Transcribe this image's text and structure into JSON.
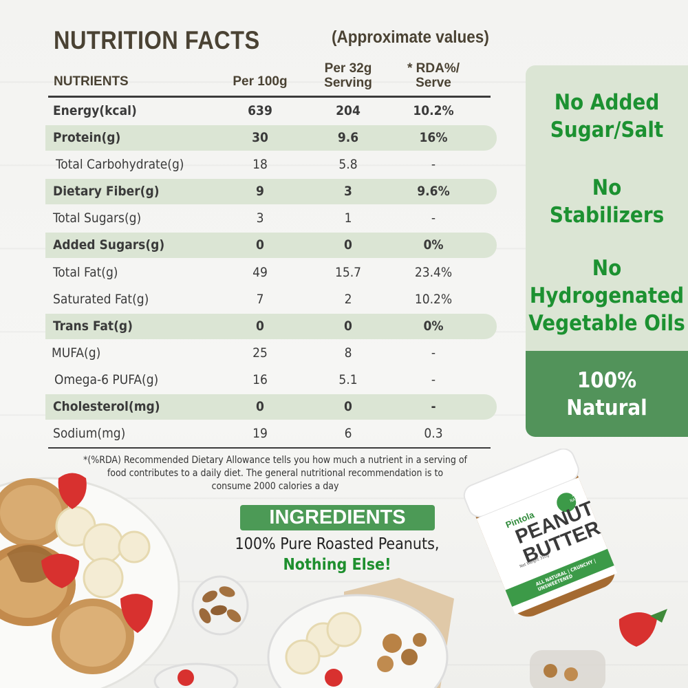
{
  "header": {
    "title": "NUTRITION FACTS",
    "approx": "(Approximate values)",
    "col_nutrients": "NUTRIENTS",
    "col_per100": "Per 100g",
    "col_per32_l1": "Per 32g",
    "col_per32_l2": "Serving",
    "col_rda_l1": "* RDA%/",
    "col_rda_l2": "Serve"
  },
  "rows": [
    {
      "name": "Energy(kcal)",
      "per100": "639",
      "per32": "204",
      "rda": "10.2%"
    },
    {
      "name": "Protein(g)",
      "per100": "30",
      "per32": "9.6",
      "rda": "16%"
    },
    {
      "name": "Total Carbohydrate(g)",
      "per100": "18",
      "per32": "5.8",
      "rda": "-"
    },
    {
      "name": "Dietary Fiber(g)",
      "per100": "9",
      "per32": "3",
      "rda": "9.6%"
    },
    {
      "name": "Total Sugars(g)",
      "per100": "3",
      "per32": "1",
      "rda": "-"
    },
    {
      "name": "Added Sugars(g)",
      "per100": "0",
      "per32": "0",
      "rda": "0%"
    },
    {
      "name": "Total Fat(g)",
      "per100": "49",
      "per32": "15.7",
      "rda": "23.4%"
    },
    {
      "name": "Saturated Fat(g)",
      "per100": "7",
      "per32": "2",
      "rda": "10.2%"
    },
    {
      "name": "Trans Fat(g)",
      "per100": "0",
      "per32": "0",
      "rda": "0%"
    },
    {
      "name": "MUFA(g)",
      "per100": "25",
      "per32": "8",
      "rda": "-"
    },
    {
      "name": "Omega-6 PUFA(g)",
      "per100": "16",
      "per32": "5.1",
      "rda": "-"
    },
    {
      "name": "Cholesterol(mg)",
      "per100": "0",
      "per32": "0",
      "rda": "-"
    },
    {
      "name": "Sodium(mg)",
      "per100": "19",
      "per32": "6",
      "rda": "0.3"
    }
  ],
  "footnote": {
    "l1": "*(%RDA) Recommended Dietary Allowance tells you how much a nutrient in a serving of",
    "l2": "food contributes to a daily diet. The general nutritional recommendation is to",
    "l3": "consume 2000 calories a day"
  },
  "ingredients": {
    "label": "INGREDIENTS",
    "line1": "100% Pure Roasted Peanuts,",
    "line2": "Nothing Else!"
  },
  "claims": {
    "c1_l1": "No Added",
    "c1_l2": "Sugar/Salt",
    "c2_l1": "No",
    "c2_l2": "Stabilizers",
    "c3_l1": "No",
    "c3_l2": "Hydrogenated",
    "c3_l3": "Vegetable Oils",
    "c4_l1": "100%",
    "c4_l2": "Natural"
  },
  "jar": {
    "brand": "Pintola",
    "product_l1": "PEANUT",
    "product_l2": "BUTTER",
    "badge": "100% NATURAL",
    "tagline": "ALL NATURAL | CRUNCHY | UNSWEETENED",
    "weight": "Net Weight 350g"
  },
  "colors": {
    "accent_green": "#4c9a56",
    "claim_text": "#1c9131",
    "row_highlight": "#dbe5d4",
    "title_brown": "#4a4233"
  }
}
